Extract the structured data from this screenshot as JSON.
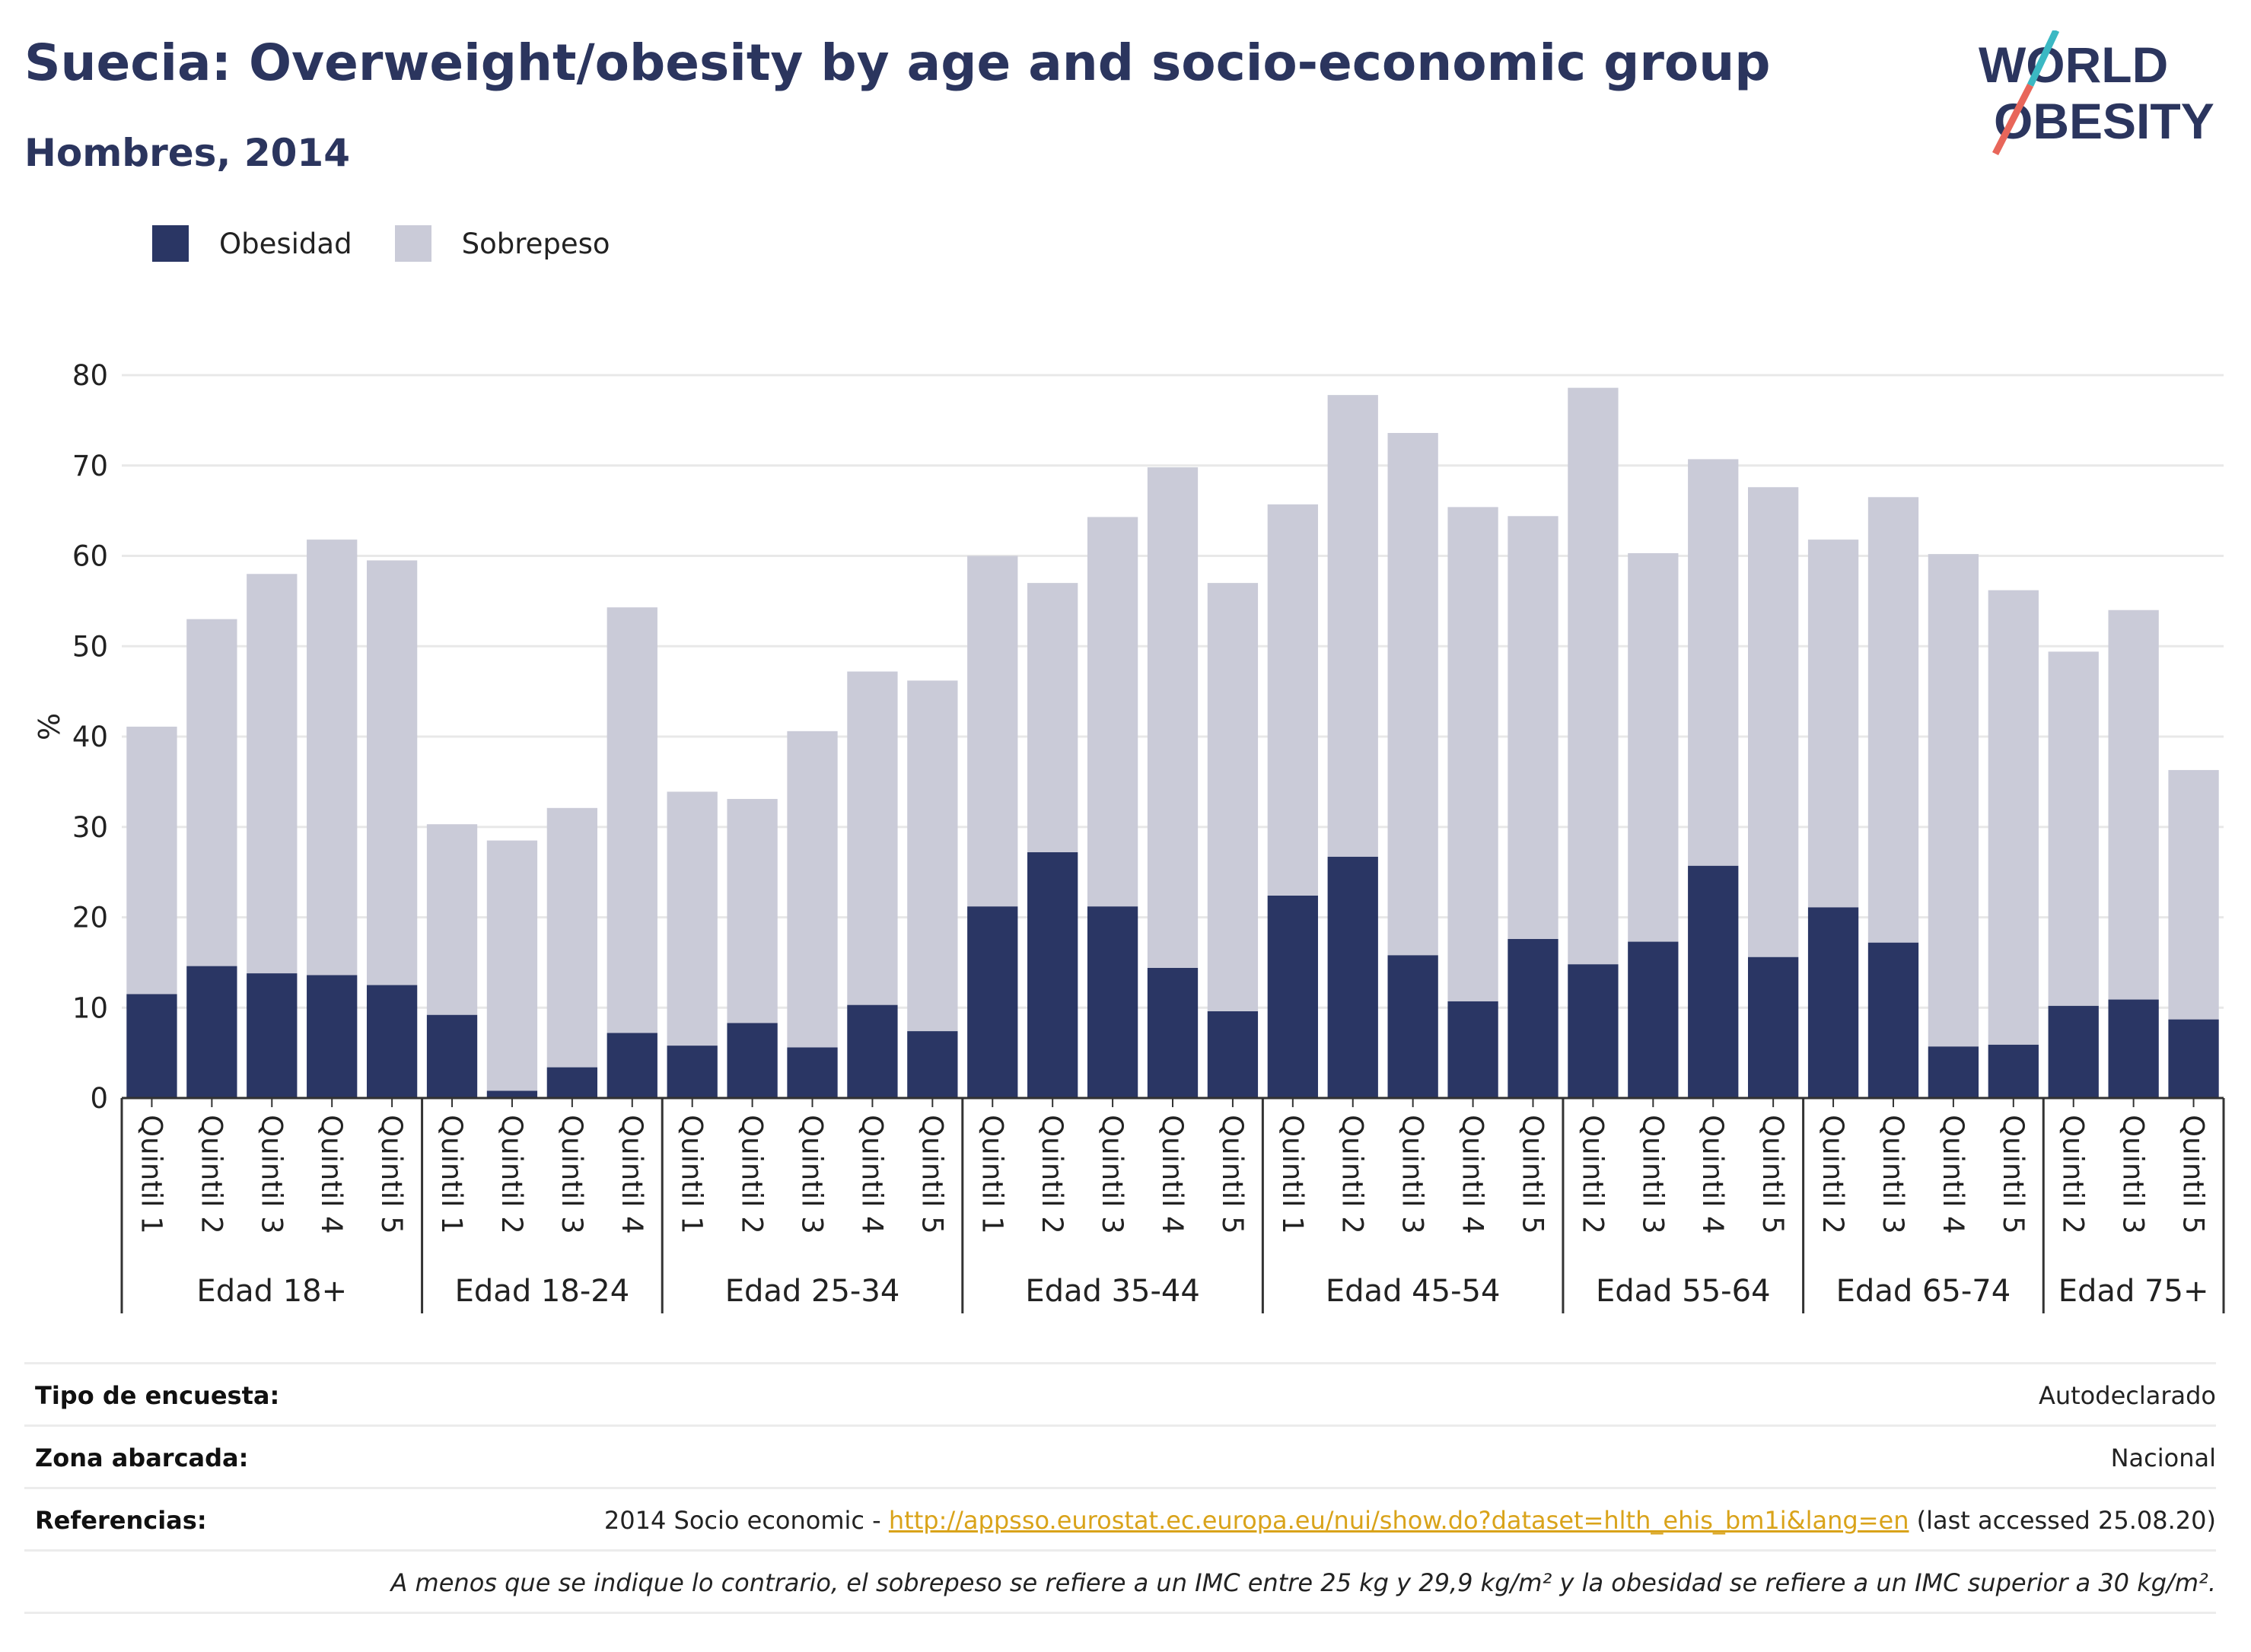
{
  "header": {
    "title": "Suecia: Overweight/obesity by age and socio-economic group",
    "subtitle": "Hombres, 2014",
    "logo_line1": "WORLD",
    "logo_line2": "OBESITY"
  },
  "colors": {
    "obesity": "#2a3664",
    "overweight": "#cacbd8",
    "title": "#2b355e",
    "grid": "#e8e8e8",
    "axis": "#333333",
    "link": "#d9a31a",
    "logo_teal": "#3bb8c3",
    "logo_red": "#e8665a"
  },
  "chart_data": {
    "type": "bar",
    "stacked": true,
    "ylabel": "%",
    "ylim": [
      0,
      80
    ],
    "yticks": [
      0,
      10,
      20,
      30,
      40,
      50,
      60,
      70,
      80
    ],
    "grid": true,
    "legend_position": "top-left",
    "legend": [
      "Obesidad",
      "Sobrepeso"
    ],
    "groups": [
      {
        "label": "Edad 18+",
        "categories": [
          "Quintil 1",
          "Quintil 2",
          "Quintil 3",
          "Quintil 4",
          "Quintil 5"
        ],
        "obesidad": [
          11.5,
          14.6,
          13.8,
          13.6,
          12.5
        ],
        "total": [
          41.1,
          53.0,
          58.0,
          61.8,
          59.5
        ]
      },
      {
        "label": "Edad 18-24",
        "categories": [
          "Quintil 1",
          "Quintil 2",
          "Quintil 3",
          "Quintil 4"
        ],
        "obesidad": [
          9.2,
          0.8,
          3.4,
          7.2
        ],
        "total": [
          30.3,
          28.5,
          32.1,
          54.3
        ]
      },
      {
        "label": "Edad 25-34",
        "categories": [
          "Quintil 1",
          "Quintil 2",
          "Quintil 3",
          "Quintil 4",
          "Quintil 5"
        ],
        "obesidad": [
          5.8,
          8.3,
          5.6,
          10.3,
          7.4
        ],
        "total": [
          33.9,
          33.1,
          40.6,
          47.2,
          46.2
        ]
      },
      {
        "label": "Edad 35-44",
        "categories": [
          "Quintil 1",
          "Quintil 2",
          "Quintil 3",
          "Quintil 4",
          "Quintil 5"
        ],
        "obesidad": [
          21.2,
          27.2,
          21.2,
          14.4,
          9.6
        ],
        "total": [
          60.0,
          57.0,
          64.3,
          69.8,
          57.0
        ]
      },
      {
        "label": "Edad 45-54",
        "categories": [
          "Quintil 1",
          "Quintil 2",
          "Quintil 3",
          "Quintil 4",
          "Quintil 5"
        ],
        "obesidad": [
          22.4,
          26.7,
          15.8,
          10.7,
          17.6
        ],
        "total": [
          65.7,
          77.8,
          73.6,
          65.4,
          64.4
        ]
      },
      {
        "label": "Edad 55-64",
        "categories": [
          "Quintil 2",
          "Quintil 3",
          "Quintil 4",
          "Quintil 5"
        ],
        "obesidad": [
          14.8,
          17.3,
          25.7,
          15.6
        ],
        "total": [
          78.6,
          60.3,
          70.7,
          67.6
        ]
      },
      {
        "label": "Edad 65-74",
        "categories": [
          "Quintil 2",
          "Quintil 3",
          "Quintil 4",
          "Quintil 5"
        ],
        "obesidad": [
          21.1,
          17.2,
          5.7,
          5.9
        ],
        "total": [
          61.8,
          66.5,
          60.2,
          56.2
        ]
      },
      {
        "label": "Edad 75+",
        "categories": [
          "Quintil 2",
          "Quintil 3",
          "Quintil 5"
        ],
        "obesidad": [
          10.2,
          10.9,
          8.7
        ],
        "total": [
          49.4,
          54.0,
          36.3
        ]
      }
    ]
  },
  "meta": {
    "survey_label": "Tipo de encuesta:",
    "survey_value": "Autodeclarado",
    "area_label": "Zona abarcada:",
    "area_value": "Nacional",
    "refs_label": "Referencias:",
    "refs_prefix": "2014 Socio economic - ",
    "refs_link": "http://appsso.eurostat.ec.europa.eu/nui/show.do?dataset=hlth_ehis_bm1i&lang=en",
    "refs_suffix": " (last accessed 25.08.20)",
    "note": "A menos que se indique lo contrario, el sobrepeso se refiere a un IMC entre 25 kg y 29,9 kg/m² y la obesidad se refiere a un IMC superior a 30 kg/m²."
  }
}
